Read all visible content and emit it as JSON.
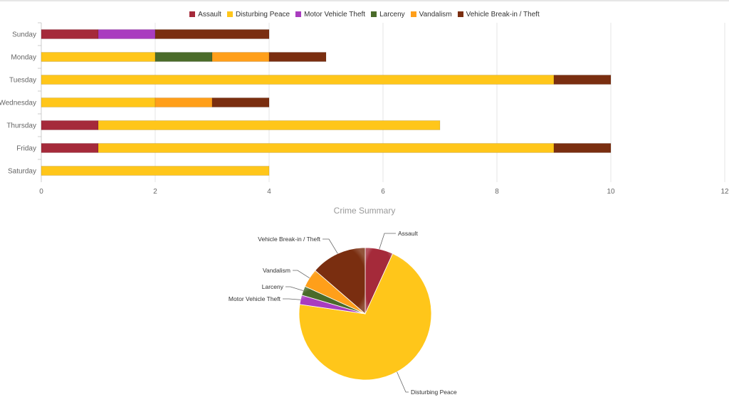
{
  "chart_data": [
    {
      "type": "bar",
      "orientation": "horizontal",
      "stacked": true,
      "categories": [
        "Sunday",
        "Monday",
        "Tuesday",
        "Wednesday",
        "Thursday",
        "Friday",
        "Saturday"
      ],
      "series": [
        {
          "name": "Assault",
          "color": "#a52a3a",
          "values": [
            1,
            0,
            0,
            0,
            1,
            1,
            0
          ]
        },
        {
          "name": "Disturbing Peace",
          "color": "#ffc61a",
          "values": [
            0,
            2,
            9,
            2,
            6,
            8,
            4
          ]
        },
        {
          "name": "Motor Vehicle Theft",
          "color": "#a93cbf",
          "values": [
            1,
            0,
            0,
            0,
            0,
            0,
            0
          ]
        },
        {
          "name": "Larceny",
          "color": "#4a6b2a",
          "values": [
            0,
            1,
            0,
            0,
            0,
            0,
            0
          ]
        },
        {
          "name": "Vandalism",
          "color": "#ff9f1a",
          "values": [
            0,
            1,
            0,
            1,
            0,
            0,
            0
          ]
        },
        {
          "name": "Vehicle Break-in / Theft",
          "color": "#7a2e10",
          "values": [
            2,
            1,
            1,
            1,
            0,
            1,
            0
          ]
        }
      ],
      "xlim": [
        0,
        12
      ],
      "xticks": [
        "0",
        "2",
        "4",
        "6",
        "8",
        "10",
        "12"
      ],
      "grid": true,
      "legend": "top-center"
    },
    {
      "type": "pie",
      "title": "Crime Summary",
      "slices": [
        {
          "label": "Assault",
          "value": 3,
          "color": "#a52a3a"
        },
        {
          "label": "Disturbing Peace",
          "value": 31,
          "color": "#ffc61a"
        },
        {
          "label": "Motor Vehicle Theft",
          "value": 1,
          "color": "#a93cbf"
        },
        {
          "label": "Larceny",
          "value": 1,
          "color": "#4a6b2a"
        },
        {
          "label": "Vandalism",
          "value": 2,
          "color": "#ff9f1a"
        },
        {
          "label": "Vehicle Break-in / Theft",
          "value": 6,
          "color": "#7a2e10"
        }
      ]
    }
  ]
}
